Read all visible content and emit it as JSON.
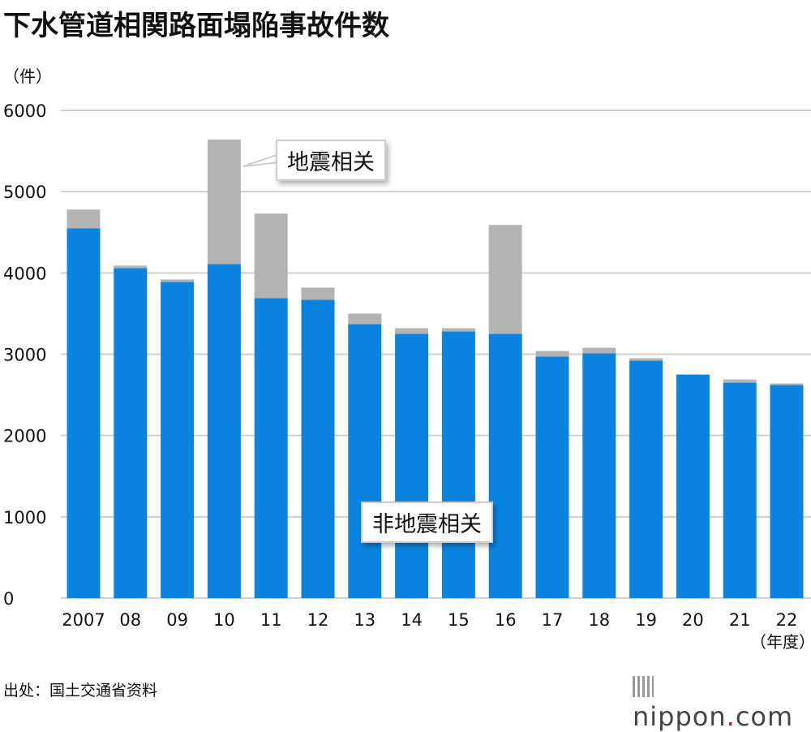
{
  "title": "下水管道相関路面塌陥事故件数",
  "source": "出处：国土交通省资料",
  "logo": {
    "text_main": "nippon",
    "text_dot": ".",
    "text_end": "com"
  },
  "chart_data": {
    "type": "bar",
    "stacked": true,
    "title": "下水管道相関路面塌陥事故件数",
    "ylabel": "（件）",
    "xlabel": "（年度）",
    "ylim": [
      0,
      6000
    ],
    "yticks": [
      "0",
      "1000",
      "2000",
      "3000",
      "4000",
      "5000",
      "6000"
    ],
    "grid": true,
    "categories": [
      "2007",
      "08",
      "09",
      "10",
      "11",
      "12",
      "13",
      "14",
      "15",
      "16",
      "17",
      "18",
      "19",
      "20",
      "21",
      "22"
    ],
    "series": [
      {
        "name": "非地震相关",
        "color": "#0a84e0",
        "values": [
          4550,
          4060,
          3890,
          4110,
          3690,
          3670,
          3370,
          3250,
          3280,
          3250,
          2970,
          3010,
          2920,
          2750,
          2650,
          2620
        ]
      },
      {
        "name": "地震相关",
        "color": "#b3b3b3",
        "values": [
          230,
          30,
          30,
          1530,
          1040,
          150,
          130,
          70,
          40,
          1340,
          70,
          70,
          30,
          0,
          40,
          20
        ]
      }
    ]
  }
}
